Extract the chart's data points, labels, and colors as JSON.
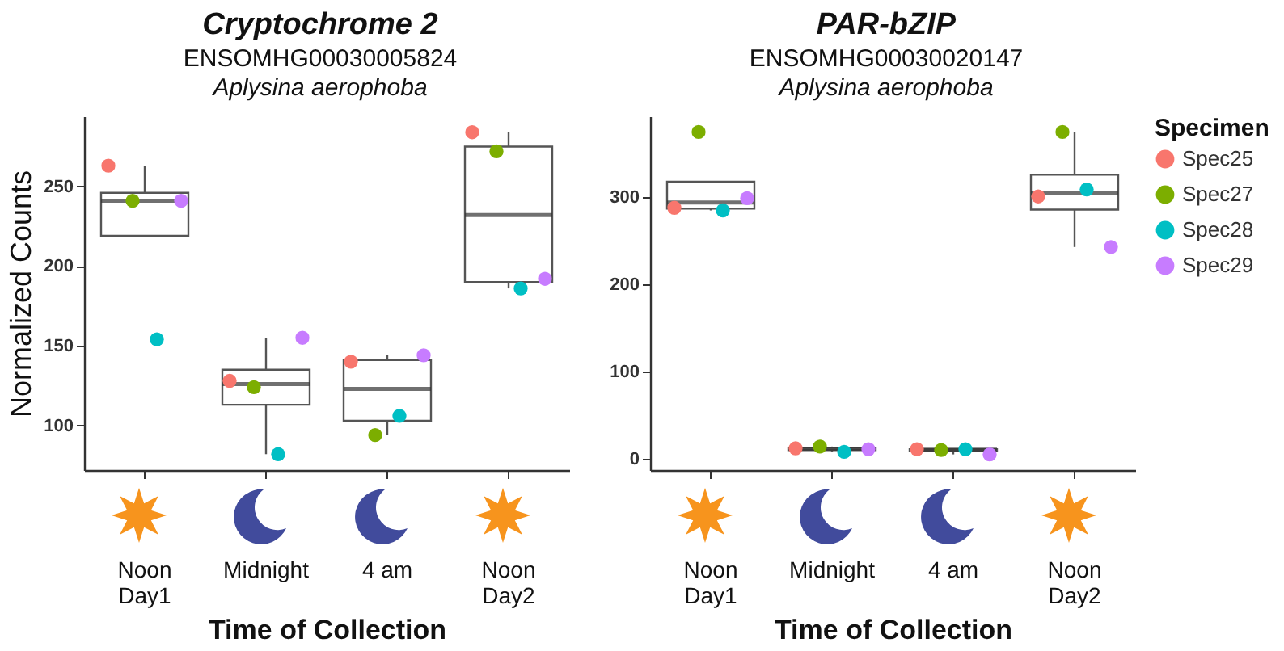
{
  "chart_data": [
    {
      "type": "box",
      "title": "Cryptochrome 2",
      "subtitle": "ENSOMHG00030005824\nAplysina aerophoba",
      "xlabel": "Time of Collection",
      "ylabel": "Normalized Counts",
      "categories": [
        "Noon\nDay1",
        "Midnight",
        "4 am",
        "Noon\nDay2"
      ],
      "ylim": [
        72,
        294
      ],
      "yticks": [
        100,
        150,
        200,
        250
      ],
      "boxes": [
        {
          "low": 219,
          "q1": 219,
          "median": 241,
          "q3": 246,
          "high": 263
        },
        {
          "low": 82,
          "q1": 113,
          "median": 126,
          "q3": 135,
          "high": 155
        },
        {
          "low": 94,
          "q1": 103,
          "median": 123,
          "q3": 141,
          "high": 144
        },
        {
          "low": 186,
          "q1": 190,
          "median": 232,
          "q3": 275,
          "high": 284
        }
      ],
      "series": [
        {
          "type": "scatter",
          "color": "#f8766d",
          "x": [
            "Noon\nDay1",
            "Midnight",
            "4 am",
            "Noon\nDay2"
          ],
          "values": [
            263,
            128,
            140,
            284
          ]
        },
        {
          "type": "scatter",
          "color": "#7cae00",
          "x": [
            "Noon\nDay1",
            "Midnight",
            "4 am",
            "Noon\nDay2"
          ],
          "values": [
            241,
            124,
            94,
            272
          ]
        },
        {
          "type": "scatter",
          "color": "#00bfc4",
          "x": [
            "Noon\nDay1",
            "Midnight",
            "4 am",
            "Noon\nDay2"
          ],
          "values": [
            154,
            82,
            106,
            186
          ]
        },
        {
          "type": "scatter",
          "color": "#c77cff",
          "x": [
            "Noon\nDay1",
            "Midnight",
            "4 am",
            "Noon\nDay2"
          ],
          "values": [
            241,
            155,
            144,
            192
          ]
        }
      ]
    },
    {
      "type": "box",
      "title": "PAR-bZIP",
      "subtitle": "ENSOMHG00030020147\nAplysina aerophoba",
      "xlabel": "Time of Collection",
      "legend_title": "Specimen",
      "legend": "right",
      "categories": [
        "Noon\nDay1",
        "Midnight",
        "4 am",
        "Noon\nDay2"
      ],
      "ylim": [
        -13,
        393
      ],
      "yticks": [
        0,
        100,
        200,
        300
      ],
      "boxes": [
        {
          "low": 285,
          "q1": 287,
          "median": 294,
          "q3": 318,
          "high": 318
        },
        {
          "low": 8,
          "q1": 10,
          "median": 11.5,
          "q3": 12.5,
          "high": 14
        },
        {
          "low": 5,
          "q1": 9,
          "median": 10.5,
          "q3": 11,
          "high": 11
        },
        {
          "low": 243,
          "q1": 286,
          "median": 305,
          "q3": 326,
          "high": 375
        }
      ],
      "series": [
        {
          "name": "Spec25",
          "type": "scatter",
          "color": "#f8766d",
          "x": [
            "Noon\nDay1",
            "Midnight",
            "4 am",
            "Noon\nDay2"
          ],
          "values": [
            288,
            12,
            11,
            301
          ]
        },
        {
          "name": "Spec27",
          "type": "scatter",
          "color": "#7cae00",
          "x": [
            "Noon\nDay1",
            "Midnight",
            "4 am",
            "Noon\nDay2"
          ],
          "values": [
            375,
            14,
            10,
            375
          ]
        },
        {
          "name": "Spec28",
          "type": "scatter",
          "color": "#00bfc4",
          "x": [
            "Noon\nDay1",
            "Midnight",
            "4 am",
            "Noon\nDay2"
          ],
          "values": [
            285,
            8,
            11,
            309
          ]
        },
        {
          "name": "Spec29",
          "type": "scatter",
          "color": "#c77cff",
          "x": [
            "Noon\nDay1",
            "Midnight",
            "4 am",
            "Noon\nDay2"
          ],
          "values": [
            299,
            11,
            5,
            243
          ]
        }
      ]
    }
  ]
}
